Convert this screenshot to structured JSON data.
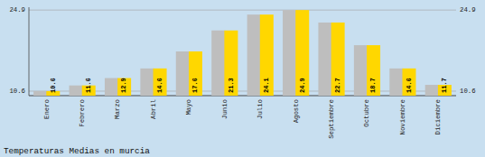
{
  "chart_data": {
    "type": "bar",
    "title": "Temperaturas Medias en murcia",
    "categories": [
      "Enero",
      "Febrero",
      "Marzo",
      "Abril",
      "Mayo",
      "Junio",
      "Julio",
      "Agosto",
      "Septiembre",
      "Octubre",
      "Noviembre",
      "Diciembre"
    ],
    "series": [
      {
        "color": "#BEBEBE",
        "values": [
          10.6,
          11.6,
          12.9,
          14.6,
          17.6,
          21.3,
          24.1,
          24.9,
          22.7,
          18.7,
          14.6,
          11.7
        ]
      },
      {
        "color": "#FFD700",
        "data_labels": true,
        "values": [
          10.6,
          11.6,
          12.9,
          14.6,
          17.6,
          21.3,
          24.1,
          24.9,
          22.7,
          18.7,
          14.6,
          11.7
        ]
      }
    ],
    "ylim": [
      9.8,
      25.4
    ],
    "yticks": [
      10.6,
      24.9
    ],
    "grid": true
  }
}
